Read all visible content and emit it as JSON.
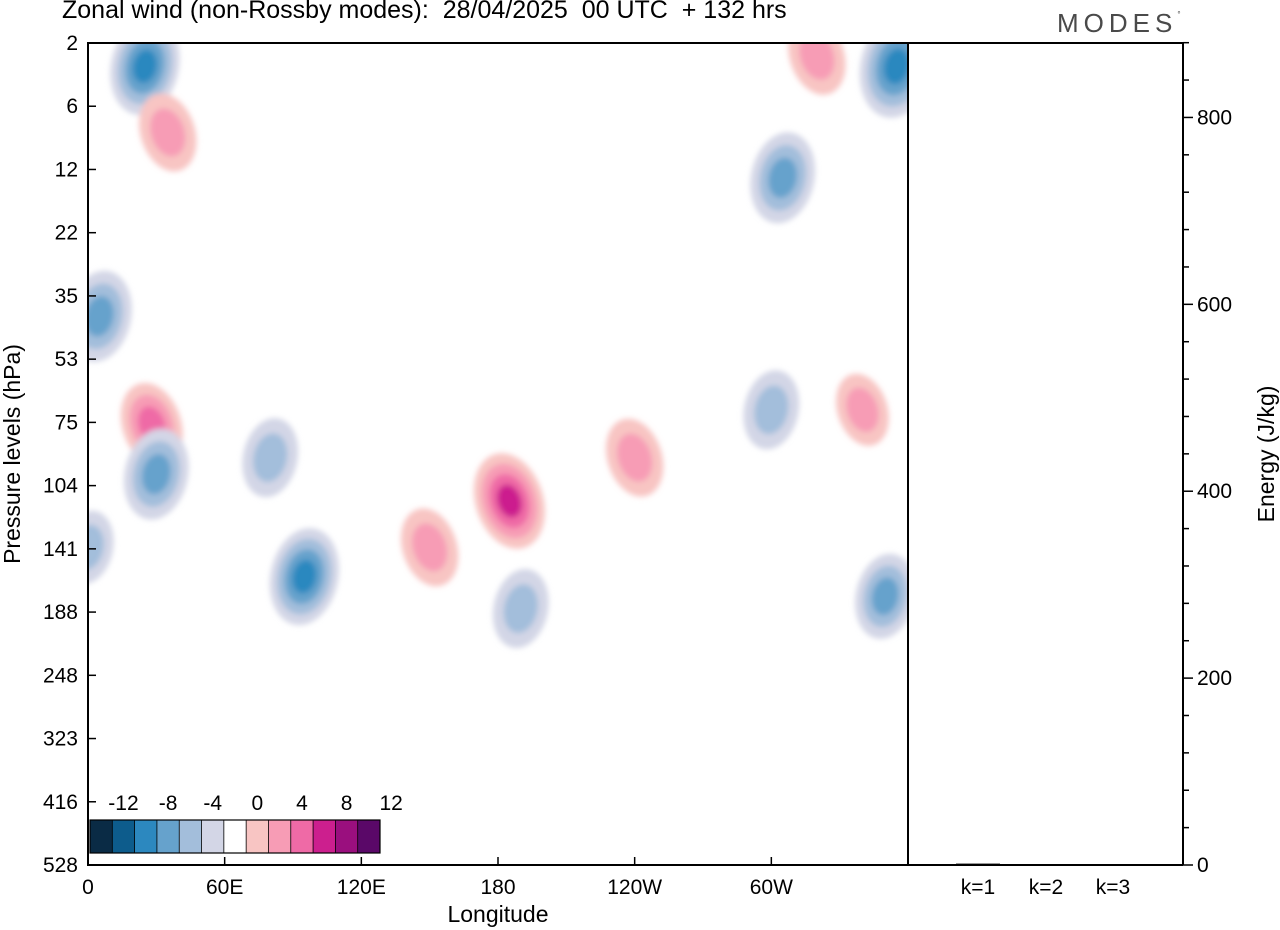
{
  "title": "Zonal wind (non-Rossby modes):  28/04/2025  00 UTC  + 132 hrs",
  "brand": "MODES",
  "brand_mark": "°",
  "chart_data": [
    {
      "type": "heatmap",
      "title": "Zonal wind (non-Rossby modes):  28/04/2025  00 UTC  + 132 hrs",
      "xlabel": "Longitude",
      "ylabel": "Pressure levels (hPa)",
      "x_ticks": [
        "0",
        "60E",
        "120E",
        "180",
        "120W",
        "60W"
      ],
      "y_ticks": [
        "2",
        "6",
        "12",
        "22",
        "35",
        "53",
        "75",
        "104",
        "141",
        "188",
        "248",
        "323",
        "416",
        "528"
      ],
      "colorbar": {
        "labels": [
          "-12",
          "-8",
          "-4",
          "0",
          "4",
          "8",
          "12"
        ],
        "levels": [
          -14,
          -12,
          -10,
          -8,
          -6,
          -4,
          -2,
          2,
          4,
          6,
          8,
          10,
          12,
          14
        ],
        "colors": [
          "#0a2b45",
          "#0d5c8c",
          "#2c88bf",
          "#66a2cc",
          "#a3bedb",
          "#d3d6e6",
          "#ffffff",
          "#f8c5c3",
          "#f79cb5",
          "#ef6aa6",
          "#cc1f8e",
          "#9a0f7e",
          "#5a0868"
        ]
      },
      "features": [
        {
          "lon": 25,
          "plev": 3,
          "value": -9
        },
        {
          "lon": 35,
          "plev": 8,
          "value": 6
        },
        {
          "lon": 5,
          "plev": 40,
          "value": -8
        },
        {
          "lon": 28,
          "plev": 76,
          "value": 7
        },
        {
          "lon": 30,
          "plev": 98,
          "value": -8
        },
        {
          "lon": 80,
          "plev": 90,
          "value": -6
        },
        {
          "lon": 95,
          "plev": 160,
          "value": -9
        },
        {
          "lon": 150,
          "plev": 140,
          "value": 6
        },
        {
          "lon": 185,
          "plev": 112,
          "value": 9
        },
        {
          "lon": 240,
          "plev": 90,
          "value": 6
        },
        {
          "lon": 190,
          "plev": 185,
          "value": -6
        },
        {
          "lon": 305,
          "plev": 13,
          "value": -8
        },
        {
          "lon": 355,
          "plev": 3,
          "value": -10
        },
        {
          "lon": 320,
          "plev": 2.5,
          "value": 6
        },
        {
          "lon": 300,
          "plev": 70,
          "value": -6
        },
        {
          "lon": 350,
          "plev": 175,
          "value": -7
        },
        {
          "lon": 340,
          "plev": 70,
          "value": 5
        },
        {
          "lon": 0,
          "plev": 140,
          "value": -5
        }
      ]
    },
    {
      "type": "bar",
      "categories": [
        "k=1",
        "k=2",
        "k=3"
      ],
      "values": [
        1.5,
        0.8,
        0.6
      ],
      "ylabel": "Energy (J/kg)",
      "y_ticks": [
        "0",
        "200",
        "400",
        "600",
        "800"
      ],
      "ylim": [
        0,
        900
      ]
    }
  ]
}
